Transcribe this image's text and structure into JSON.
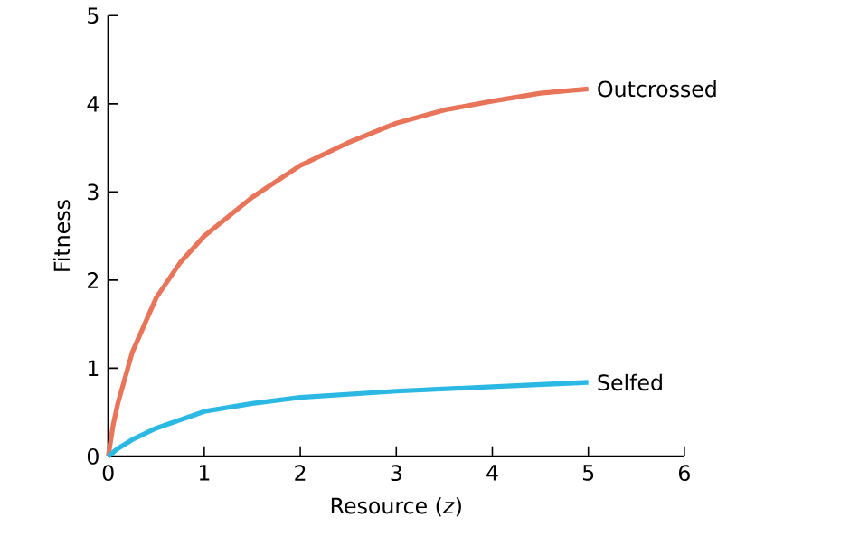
{
  "chart_data": {
    "type": "line",
    "xlabel": "Resource (*z*)",
    "ylabel": "Fitness",
    "xlim": [
      0,
      6
    ],
    "ylim": [
      0,
      5
    ],
    "xticks": [
      0,
      1,
      2,
      3,
      4,
      5,
      6
    ],
    "yticks": [
      0,
      1,
      2,
      3,
      4,
      5
    ],
    "grid": false,
    "legend": false,
    "marker": "none",
    "line_style": "solid",
    "series": [
      {
        "name": "Outcrossed",
        "color": "#e8745a",
        "x": [
          0,
          0.05,
          0.1,
          0.25,
          0.5,
          0.75,
          1,
          1.5,
          2,
          2.5,
          3,
          3.5,
          4,
          4.5,
          5
        ],
        "values": [
          0,
          0.35,
          0.6,
          1.18,
          1.8,
          2.2,
          2.5,
          2.94,
          3.3,
          3.56,
          3.78,
          3.93,
          4.03,
          4.12,
          4.17
        ]
      },
      {
        "name": "Selfed",
        "color": "#2bb8e3",
        "x": [
          0,
          0.1,
          0.25,
          0.5,
          1,
          1.5,
          2,
          3,
          4,
          5
        ],
        "values": [
          0,
          0.09,
          0.19,
          0.32,
          0.51,
          0.6,
          0.67,
          0.74,
          0.79,
          0.84
        ]
      }
    ]
  }
}
